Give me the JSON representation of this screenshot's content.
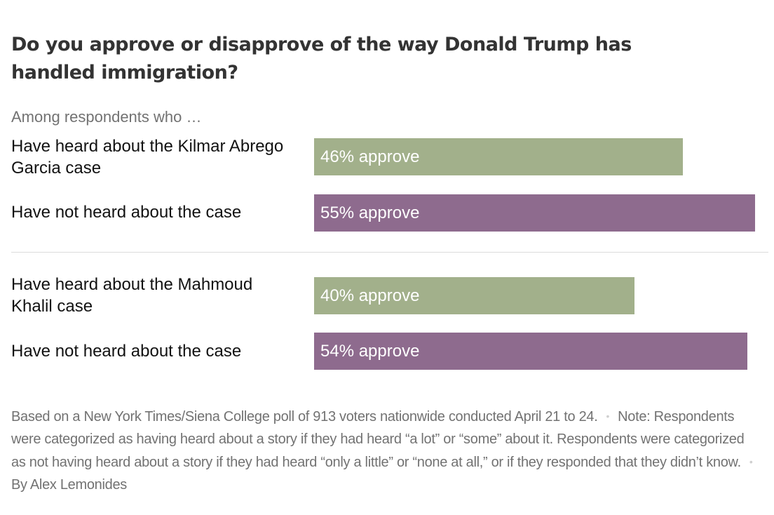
{
  "title": "Do you approve or disapprove of the way Donald Trump has handled immigration?",
  "subhead": "Among respondents who …",
  "chart_data": {
    "type": "bar",
    "orientation": "horizontal",
    "unit": "% approve",
    "xlim": [
      0,
      55
    ],
    "groups": [
      {
        "rows": [
          {
            "label": "Have heard about the Kilmar Abrego Garcia case",
            "value": 46,
            "value_label": "46% approve",
            "color": "#a2b08b"
          },
          {
            "label": "Have not heard about the case",
            "value": 55,
            "value_label": "55% approve",
            "color": "#8e6b8e"
          }
        ]
      },
      {
        "rows": [
          {
            "label": "Have heard about the Mahmoud Khalil case",
            "value": 40,
            "value_label": "40% approve",
            "color": "#a2b08b"
          },
          {
            "label": "Have not heard about the case",
            "value": 54,
            "value_label": "54% approve",
            "color": "#8e6b8e"
          }
        ]
      }
    ]
  },
  "footnote": {
    "source": "Based on a New York Times/Siena College poll of 913 voters nationwide conducted April 21 to 24.",
    "note": "Note: Respondents were categorized as having heard about a story if they had heard “a lot” or “some” about it. Respondents were categorized as not having heard about a story if they had heard “only a little” or “none at all,” or if they responded that they didn’t know.",
    "byline": "By Alex Lemonides",
    "separator": "•"
  }
}
